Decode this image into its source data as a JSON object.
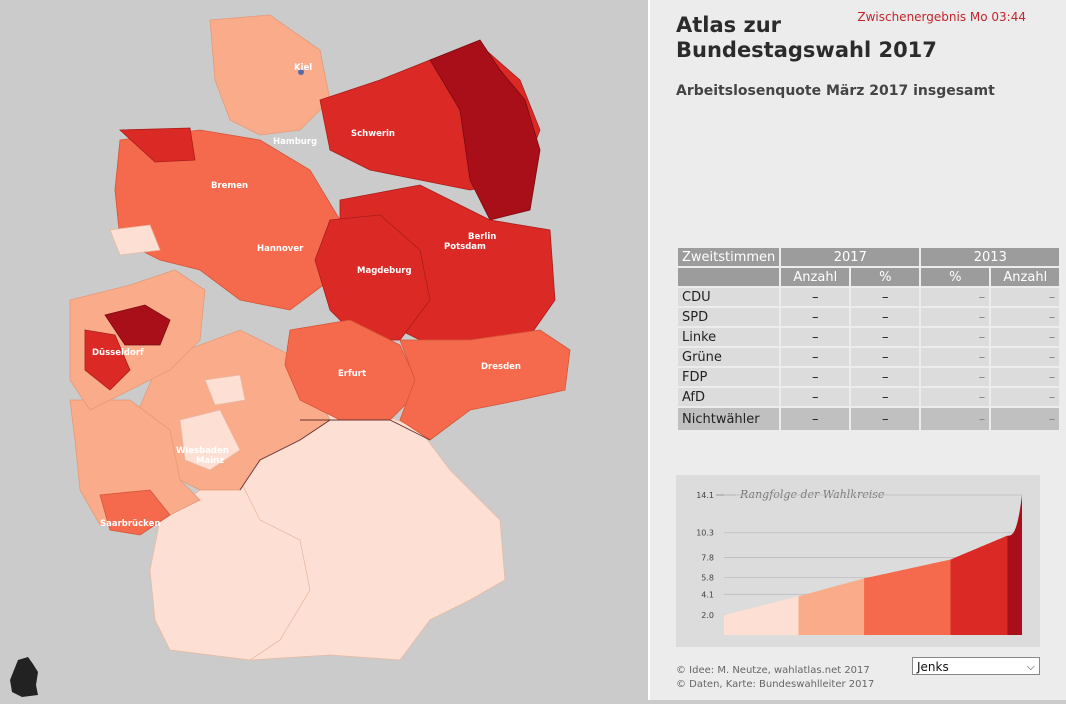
{
  "header": {
    "title_line1": "Atlas zur",
    "title_line2": "Bundestagswahl 2017",
    "status": "Zwischenergebnis Mo 03:44",
    "subtitle": "Arbeitslosenquote März 2017 insgesamt"
  },
  "table": {
    "col_label": "Zweitstimmen",
    "year_new": "2017",
    "year_old": "2013",
    "sub_anzahl": "Anzahl",
    "sub_pct": "%",
    "rows": [
      {
        "party": "CDU",
        "v": [
          "–",
          "–",
          "–",
          "–"
        ]
      },
      {
        "party": "SPD",
        "v": [
          "–",
          "–",
          "–",
          "–"
        ]
      },
      {
        "party": "Linke",
        "v": [
          "–",
          "–",
          "–",
          "–"
        ]
      },
      {
        "party": "Grüne",
        "v": [
          "–",
          "–",
          "–",
          "–"
        ]
      },
      {
        "party": "FDP",
        "v": [
          "–",
          "–",
          "–",
          "–"
        ]
      },
      {
        "party": "AfD",
        "v": [
          "–",
          "–",
          "–",
          "–"
        ]
      },
      {
        "party": "Nichtwähler",
        "v": [
          "–",
          "–",
          "–",
          "–"
        ]
      }
    ]
  },
  "chart_data": {
    "type": "area",
    "title": "Rangfolge der Wahlkreise",
    "yticks": [
      "14.1",
      "10.3",
      "7.8",
      "5.8",
      "4.1",
      "2.0"
    ],
    "ytick_values": [
      14.1,
      10.3,
      7.8,
      5.8,
      4.1,
      2.0
    ],
    "ylim": [
      0,
      14.1
    ],
    "class_breaks": [
      2.0,
      4.1,
      5.8,
      7.8,
      10.3,
      14.1
    ],
    "class_colors": [
      "#fde0d3",
      "#f9ab8a",
      "#f56a4c",
      "#db2a26",
      "#a90f18"
    ],
    "ranked_values_description": "sorted ascending, 299 Wahlkreise",
    "ranked_values": [
      2.0,
      2.4,
      2.8,
      3.1,
      3.4,
      3.7,
      4.0,
      4.1,
      4.4,
      4.7,
      5.0,
      5.3,
      5.6,
      5.8,
      6.1,
      6.4,
      6.8,
      7.1,
      7.5,
      7.8,
      8.2,
      8.6,
      9.0,
      9.4,
      10.3,
      11.0,
      12.0,
      14.1
    ]
  },
  "map": {
    "cities": [
      "Kiel",
      "Hamburg",
      "Schwerin",
      "Bremen",
      "Hannover",
      "Berlin",
      "Potsdam",
      "Magdeburg",
      "Düsseldorf",
      "Erfurt",
      "Dresden",
      "Wiesbaden",
      "Mainz",
      "Saarbrücken"
    ]
  },
  "footer": {
    "line1": "© Idee: M. Neutze, wahlatlas.net 2017",
    "line2": "© Daten, Karte: Bundeswahlleiter 2017"
  },
  "select": {
    "value": "Jenks"
  },
  "colors": {
    "accent": "#c0262d"
  }
}
